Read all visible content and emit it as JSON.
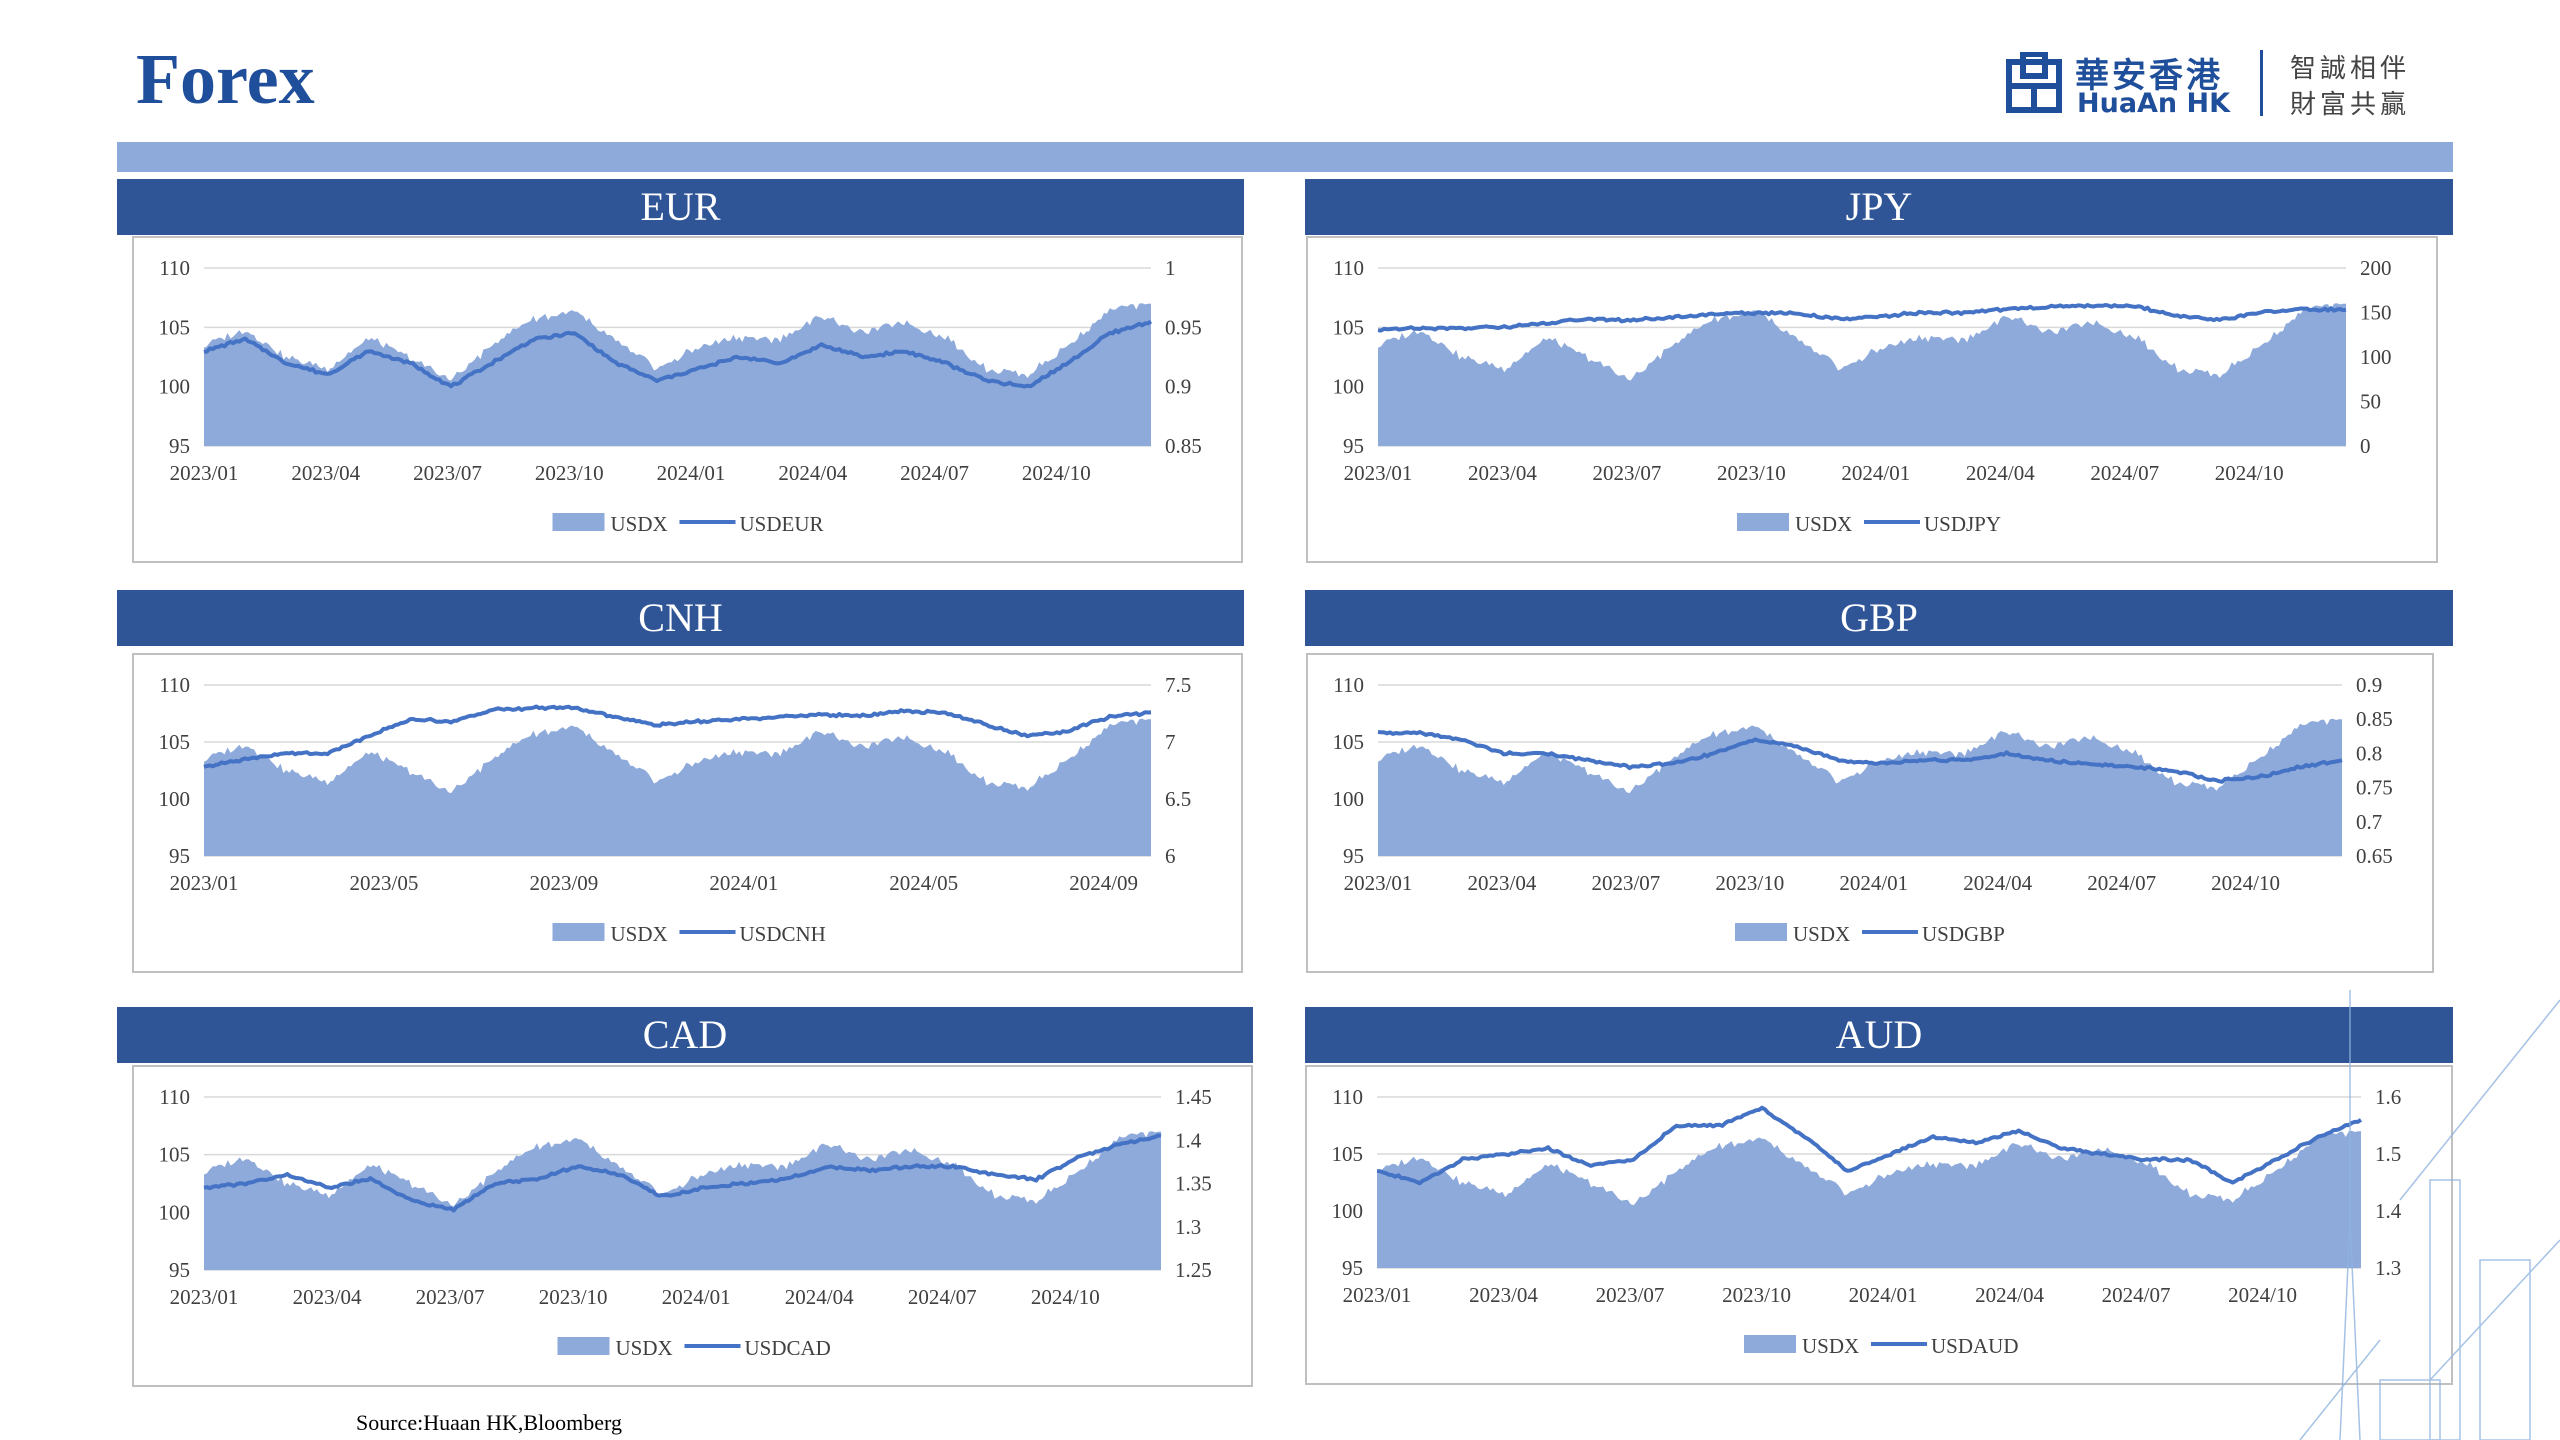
{
  "page": {
    "title": "Forex",
    "source": "Source:Huaan HK,Bloomberg"
  },
  "logo": {
    "cn": "華安香港",
    "en": "HuaAn HK",
    "slogan_line1": "智誠相伴",
    "slogan_line2": "財富共贏"
  },
  "colors": {
    "header": "#2f5597",
    "band": "#8eaadb",
    "area": "#8eaadb",
    "line": "#4472c4",
    "title": "#1f4e9b"
  },
  "chart_data": [
    {
      "id": "eur",
      "title": "EUR",
      "type": "area+line",
      "x_ticks": [
        "2023/01",
        "2023/04",
        "2023/07",
        "2023/10",
        "2024/01",
        "2024/04",
        "2024/07",
        "2024/10"
      ],
      "left_axis": {
        "ticks": [
          "110",
          "105",
          "100",
          "95"
        ],
        "range": [
          95,
          110
        ]
      },
      "right_axis": {
        "ticks": [
          "1",
          "0.95",
          "0.9",
          "0.85"
        ],
        "range": [
          0.85,
          1
        ]
      },
      "legend": [
        "USDX",
        "USDEUR"
      ],
      "legend_position": "bottom",
      "grid": true,
      "series": [
        {
          "name": "USDX",
          "kind": "area",
          "axis": "left",
          "x": [
            "2023/01",
            "2023/02",
            "2023/03",
            "2023/04",
            "2023/05",
            "2023/06",
            "2023/07",
            "2023/08",
            "2023/09",
            "2023/10",
            "2023/11",
            "2023/12",
            "2024/01",
            "2024/02",
            "2024/03",
            "2024/04",
            "2024/05",
            "2024/06",
            "2024/07",
            "2024/08",
            "2024/09",
            "2024/10",
            "2024/11",
            "2024/12"
          ],
          "values": [
            103.5,
            104.8,
            102.5,
            101.5,
            104.0,
            102.5,
            100.5,
            103.5,
            105.8,
            106.3,
            103.8,
            101.5,
            103.3,
            104.2,
            104.0,
            106.0,
            104.5,
            105.5,
            104.2,
            101.5,
            101.0,
            103.5,
            106.5,
            107.0
          ]
        },
        {
          "name": "USDEUR",
          "kind": "line",
          "axis": "right",
          "x": [
            "2023/01",
            "2023/02",
            "2023/03",
            "2023/04",
            "2023/05",
            "2023/06",
            "2023/07",
            "2023/08",
            "2023/09",
            "2023/10",
            "2023/11",
            "2023/12",
            "2024/01",
            "2024/02",
            "2024/03",
            "2024/04",
            "2024/05",
            "2024/06",
            "2024/07",
            "2024/08",
            "2024/09",
            "2024/10",
            "2024/11",
            "2024/12"
          ],
          "values": [
            0.93,
            0.94,
            0.92,
            0.91,
            0.93,
            0.92,
            0.9,
            0.92,
            0.94,
            0.945,
            0.92,
            0.905,
            0.915,
            0.925,
            0.92,
            0.935,
            0.925,
            0.93,
            0.92,
            0.905,
            0.9,
            0.92,
            0.945,
            0.955
          ]
        }
      ]
    },
    {
      "id": "jpy",
      "title": "JPY",
      "type": "area+line",
      "x_ticks": [
        "2023/01",
        "2023/04",
        "2023/07",
        "2023/10",
        "2024/01",
        "2024/04",
        "2024/07",
        "2024/10"
      ],
      "left_axis": {
        "ticks": [
          "110",
          "105",
          "100",
          "95"
        ],
        "range": [
          95,
          110
        ]
      },
      "right_axis": {
        "ticks": [
          "200",
          "150",
          "100",
          "50",
          "0"
        ],
        "range": [
          0,
          200
        ]
      },
      "legend": [
        "USDX",
        "USDJPY"
      ],
      "legend_position": "bottom",
      "grid": true,
      "series": [
        {
          "name": "USDX",
          "kind": "area",
          "axis": "left",
          "x": [
            "2023/01",
            "2023/02",
            "2023/03",
            "2023/04",
            "2023/05",
            "2023/06",
            "2023/07",
            "2023/08",
            "2023/09",
            "2023/10",
            "2023/11",
            "2023/12",
            "2024/01",
            "2024/02",
            "2024/03",
            "2024/04",
            "2024/05",
            "2024/06",
            "2024/07",
            "2024/08",
            "2024/09",
            "2024/10",
            "2024/11",
            "2024/12"
          ],
          "values": [
            103.5,
            104.8,
            102.5,
            101.5,
            104.0,
            102.5,
            100.5,
            103.5,
            105.8,
            106.3,
            103.8,
            101.5,
            103.3,
            104.2,
            104.0,
            106.0,
            104.5,
            105.5,
            104.2,
            101.5,
            101.0,
            103.5,
            106.5,
            107.0
          ]
        },
        {
          "name": "USDJPY",
          "kind": "line",
          "axis": "right",
          "x": [
            "2023/01",
            "2023/02",
            "2023/03",
            "2023/04",
            "2023/05",
            "2023/06",
            "2023/07",
            "2023/08",
            "2023/09",
            "2023/10",
            "2023/11",
            "2023/12",
            "2024/01",
            "2024/02",
            "2024/03",
            "2024/04",
            "2024/05",
            "2024/06",
            "2024/07",
            "2024/08",
            "2024/09",
            "2024/10",
            "2024/11",
            "2024/12"
          ],
          "values": [
            130,
            133,
            132,
            134,
            138,
            143,
            141,
            145,
            148,
            150,
            149,
            142,
            146,
            150,
            150,
            154,
            156,
            158,
            157,
            146,
            142,
            150,
            154,
            153
          ]
        }
      ]
    },
    {
      "id": "cnh",
      "title": "CNH",
      "type": "area+line",
      "x_ticks": [
        "2023/01",
        "2023/05",
        "2023/09",
        "2024/01",
        "2024/05",
        "2024/09"
      ],
      "left_axis": {
        "ticks": [
          "110",
          "105",
          "100",
          "95"
        ],
        "range": [
          95,
          110
        ]
      },
      "right_axis": {
        "ticks": [
          "7.5",
          "7",
          "6.5",
          "6"
        ],
        "range": [
          6,
          7.5
        ]
      },
      "legend": [
        "USDX",
        "USDCNH"
      ],
      "legend_position": "bottom",
      "grid": true,
      "series": [
        {
          "name": "USDX",
          "kind": "area",
          "axis": "left",
          "x": [
            "2023/01",
            "2023/02",
            "2023/03",
            "2023/04",
            "2023/05",
            "2023/06",
            "2023/07",
            "2023/08",
            "2023/09",
            "2023/10",
            "2023/11",
            "2023/12",
            "2024/01",
            "2024/02",
            "2024/03",
            "2024/04",
            "2024/05",
            "2024/06",
            "2024/07",
            "2024/08",
            "2024/09",
            "2024/10",
            "2024/11",
            "2024/12"
          ],
          "values": [
            103.5,
            104.8,
            102.5,
            101.5,
            104.0,
            102.5,
            100.5,
            103.5,
            105.8,
            106.3,
            103.8,
            101.5,
            103.3,
            104.2,
            104.0,
            106.0,
            104.5,
            105.5,
            104.2,
            101.5,
            101.0,
            103.5,
            106.5,
            107.0
          ]
        },
        {
          "name": "USDCNH",
          "kind": "line",
          "axis": "right",
          "x": [
            "2023/01",
            "2023/02",
            "2023/03",
            "2023/04",
            "2023/05",
            "2023/06",
            "2023/07",
            "2023/08",
            "2023/09",
            "2023/10",
            "2023/11",
            "2023/12",
            "2024/01",
            "2024/02",
            "2024/03",
            "2024/04",
            "2024/05",
            "2024/06",
            "2024/07",
            "2024/08",
            "2024/09",
            "2024/10",
            "2024/11",
            "2024/12"
          ],
          "values": [
            6.78,
            6.85,
            6.9,
            6.9,
            7.05,
            7.2,
            7.18,
            7.28,
            7.3,
            7.3,
            7.22,
            7.15,
            7.18,
            7.2,
            7.22,
            7.24,
            7.23,
            7.27,
            7.26,
            7.15,
            7.05,
            7.1,
            7.22,
            7.26
          ]
        }
      ]
    },
    {
      "id": "gbp",
      "title": "GBP",
      "type": "area+line",
      "x_ticks": [
        "2023/01",
        "2023/04",
        "2023/07",
        "2023/10",
        "2024/01",
        "2024/04",
        "2024/07",
        "2024/10"
      ],
      "left_axis": {
        "ticks": [
          "110",
          "105",
          "100",
          "95"
        ],
        "range": [
          95,
          110
        ]
      },
      "right_axis": {
        "ticks": [
          "0.9",
          "0.85",
          "0.8",
          "0.75",
          "0.7",
          "0.65"
        ],
        "range": [
          0.65,
          0.9
        ]
      },
      "legend": [
        "USDX",
        "USDGBP"
      ],
      "legend_position": "bottom",
      "grid": true,
      "series": [
        {
          "name": "USDX",
          "kind": "area",
          "axis": "left",
          "x": [
            "2023/01",
            "2023/02",
            "2023/03",
            "2023/04",
            "2023/05",
            "2023/06",
            "2023/07",
            "2023/08",
            "2023/09",
            "2023/10",
            "2023/11",
            "2023/12",
            "2024/01",
            "2024/02",
            "2024/03",
            "2024/04",
            "2024/05",
            "2024/06",
            "2024/07",
            "2024/08",
            "2024/09",
            "2024/10",
            "2024/11",
            "2024/12"
          ],
          "values": [
            103.5,
            104.8,
            102.5,
            101.5,
            104.0,
            102.5,
            100.5,
            103.5,
            105.8,
            106.3,
            103.8,
            101.5,
            103.3,
            104.2,
            104.0,
            106.0,
            104.5,
            105.5,
            104.2,
            101.5,
            101.0,
            103.5,
            106.5,
            107.0
          ]
        },
        {
          "name": "USDGBP",
          "kind": "line",
          "axis": "right",
          "x": [
            "2023/01",
            "2023/02",
            "2023/03",
            "2023/04",
            "2023/05",
            "2023/06",
            "2023/07",
            "2023/08",
            "2023/09",
            "2023/10",
            "2023/11",
            "2023/12",
            "2024/01",
            "2024/02",
            "2024/03",
            "2024/04",
            "2024/05",
            "2024/06",
            "2024/07",
            "2024/08",
            "2024/09",
            "2024/10",
            "2024/11",
            "2024/12"
          ],
          "values": [
            0.83,
            0.83,
            0.82,
            0.8,
            0.8,
            0.79,
            0.78,
            0.785,
            0.8,
            0.82,
            0.81,
            0.79,
            0.785,
            0.79,
            0.79,
            0.8,
            0.79,
            0.785,
            0.78,
            0.775,
            0.76,
            0.765,
            0.78,
            0.79
          ]
        }
      ]
    },
    {
      "id": "cad",
      "title": "CAD",
      "type": "area+line",
      "x_ticks": [
        "2023/01",
        "2023/04",
        "2023/07",
        "2023/10",
        "2024/01",
        "2024/04",
        "2024/07",
        "2024/10"
      ],
      "left_axis": {
        "ticks": [
          "110",
          "105",
          "100",
          "95"
        ],
        "range": [
          95,
          110
        ]
      },
      "right_axis": {
        "ticks": [
          "1.45",
          "1.4",
          "1.35",
          "1.3",
          "1.25"
        ],
        "range": [
          1.25,
          1.45
        ]
      },
      "legend": [
        "USDX",
        "USDCAD"
      ],
      "legend_position": "bottom",
      "grid": true,
      "series": [
        {
          "name": "USDX",
          "kind": "area",
          "axis": "left",
          "x": [
            "2023/01",
            "2023/02",
            "2023/03",
            "2023/04",
            "2023/05",
            "2023/06",
            "2023/07",
            "2023/08",
            "2023/09",
            "2023/10",
            "2023/11",
            "2023/12",
            "2024/01",
            "2024/02",
            "2024/03",
            "2024/04",
            "2024/05",
            "2024/06",
            "2024/07",
            "2024/08",
            "2024/09",
            "2024/10",
            "2024/11",
            "2024/12"
          ],
          "values": [
            103.5,
            104.8,
            102.5,
            101.5,
            104.0,
            102.5,
            100.5,
            103.5,
            105.8,
            106.3,
            103.8,
            101.5,
            103.3,
            104.2,
            104.0,
            106.0,
            104.5,
            105.5,
            104.2,
            101.5,
            101.0,
            103.5,
            106.5,
            107.0
          ]
        },
        {
          "name": "USDCAD",
          "kind": "line",
          "axis": "right",
          "x": [
            "2023/01",
            "2023/02",
            "2023/03",
            "2023/04",
            "2023/05",
            "2023/06",
            "2023/07",
            "2023/08",
            "2023/09",
            "2023/10",
            "2023/11",
            "2023/12",
            "2024/01",
            "2024/02",
            "2024/03",
            "2024/04",
            "2024/05",
            "2024/06",
            "2024/07",
            "2024/08",
            "2024/09",
            "2024/10",
            "2024/11",
            "2024/12"
          ],
          "values": [
            1.345,
            1.35,
            1.36,
            1.345,
            1.355,
            1.33,
            1.32,
            1.35,
            1.355,
            1.37,
            1.36,
            1.335,
            1.345,
            1.35,
            1.355,
            1.37,
            1.365,
            1.37,
            1.37,
            1.36,
            1.355,
            1.38,
            1.395,
            1.405
          ]
        }
      ]
    },
    {
      "id": "aud",
      "title": "AUD",
      "type": "area+line",
      "x_ticks": [
        "2023/01",
        "2023/04",
        "2023/07",
        "2023/10",
        "2024/01",
        "2024/04",
        "2024/07",
        "2024/10"
      ],
      "left_axis": {
        "ticks": [
          "110",
          "105",
          "100",
          "95"
        ],
        "range": [
          95,
          110
        ]
      },
      "right_axis": {
        "ticks": [
          "1.6",
          "1.5",
          "1.4",
          "1.3"
        ],
        "range": [
          1.3,
          1.6
        ]
      },
      "legend": [
        "USDX",
        "USDAUD"
      ],
      "legend_position": "bottom",
      "grid": true,
      "series": [
        {
          "name": "USDX",
          "kind": "area",
          "axis": "left",
          "x": [
            "2023/01",
            "2023/02",
            "2023/03",
            "2023/04",
            "2023/05",
            "2023/06",
            "2023/07",
            "2023/08",
            "2023/09",
            "2023/10",
            "2023/11",
            "2023/12",
            "2024/01",
            "2024/02",
            "2024/03",
            "2024/04",
            "2024/05",
            "2024/06",
            "2024/07",
            "2024/08",
            "2024/09",
            "2024/10",
            "2024/11",
            "2024/12"
          ],
          "values": [
            103.5,
            104.8,
            102.5,
            101.5,
            104.0,
            102.5,
            100.5,
            103.5,
            105.8,
            106.3,
            103.8,
            101.5,
            103.3,
            104.2,
            104.0,
            106.0,
            104.5,
            105.5,
            104.2,
            101.5,
            101.0,
            103.5,
            106.5,
            107.0
          ]
        },
        {
          "name": "USDAUD",
          "kind": "line",
          "axis": "right",
          "x": [
            "2023/01",
            "2023/02",
            "2023/03",
            "2023/04",
            "2023/05",
            "2023/06",
            "2023/07",
            "2023/08",
            "2023/09",
            "2023/10",
            "2023/11",
            "2023/12",
            "2024/01",
            "2024/02",
            "2024/03",
            "2024/04",
            "2024/05",
            "2024/06",
            "2024/07",
            "2024/08",
            "2024/09",
            "2024/10",
            "2024/11",
            "2024/12"
          ],
          "values": [
            1.47,
            1.45,
            1.49,
            1.5,
            1.51,
            1.48,
            1.49,
            1.55,
            1.55,
            1.58,
            1.53,
            1.47,
            1.5,
            1.53,
            1.52,
            1.54,
            1.51,
            1.5,
            1.49,
            1.49,
            1.45,
            1.49,
            1.53,
            1.56
          ]
        }
      ]
    }
  ]
}
